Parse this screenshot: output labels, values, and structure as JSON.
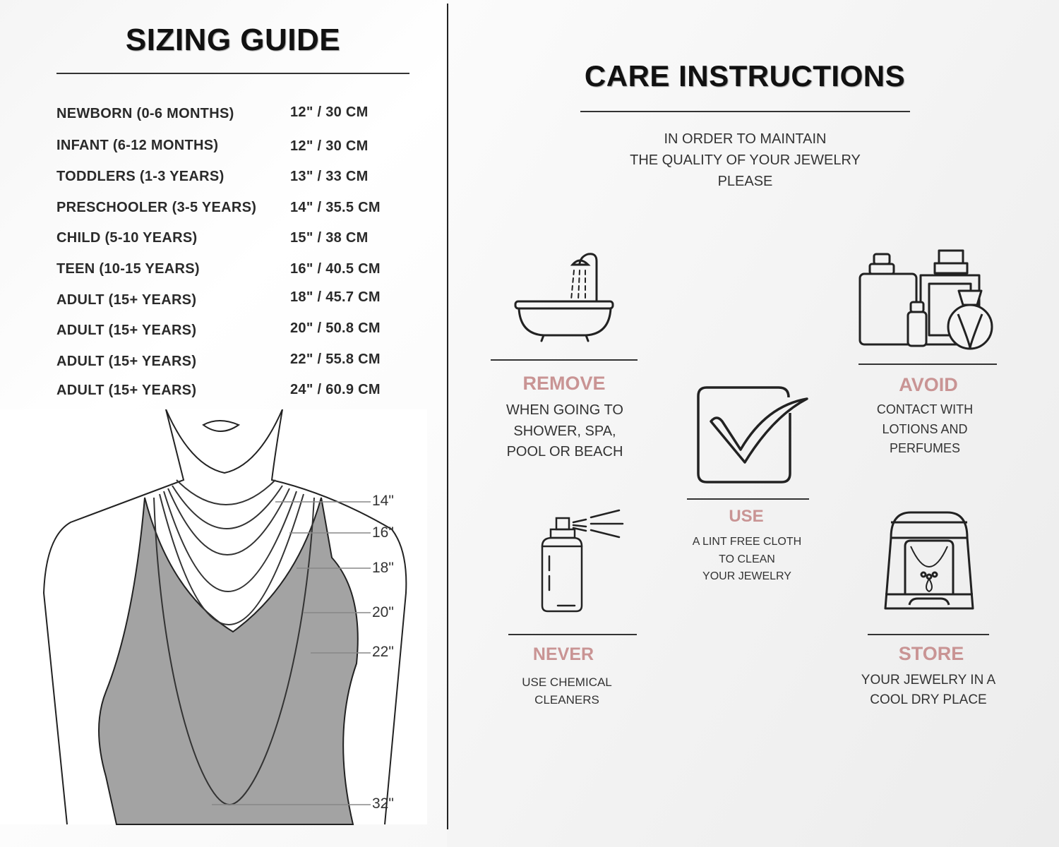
{
  "sizing": {
    "title": "SIZING GUIDE",
    "rows": [
      {
        "label": "NEWBORN (0-6 MONTHS)",
        "value": "12\" / 30 CM"
      },
      {
        "label": "INFANT (6-12 MONTHS)",
        "value": "12\" / 30 CM"
      },
      {
        "label": "TODDLERS (1-3 YEARS)",
        "value": "13\" / 33 CM"
      },
      {
        "label": "PRESCHOOLER (3-5 YEARS)",
        "value": "14\" / 35.5 CM"
      },
      {
        "label": "CHILD (5-10 YEARS)",
        "value": "15\" / 38 CM"
      },
      {
        "label": "TEEN (10-15 YEARS)",
        "value": "16\" / 40.5 CM"
      },
      {
        "label": "ADULT (15+ YEARS)",
        "value": "18\" / 45.7 CM"
      },
      {
        "label": "ADULT (15+ YEARS)",
        "value": "20\" / 50.8 CM"
      },
      {
        "label": "ADULT (15+ YEARS)",
        "value": "22\" / 55.8 CM"
      },
      {
        "label": "ADULT (15+ YEARS)",
        "value": "24\" / 60.9 CM"
      }
    ],
    "figure_labels": [
      "14\"",
      "16\"",
      "18\"",
      "20\"",
      "22\"",
      "32\""
    ]
  },
  "care": {
    "title": "CARE INSTRUCTIONS",
    "intro": [
      "IN ORDER TO MAINTAIN",
      "THE QUALITY OF YOUR JEWELRY",
      "PLEASE"
    ],
    "accent_color": "#c99494",
    "items": [
      {
        "icon": "bathtub-icon",
        "heading": "REMOVE",
        "lines": [
          "WHEN GOING TO",
          "SHOWER, SPA,",
          "POOL OR BEACH"
        ]
      },
      {
        "icon": "perfume-bottles-icon",
        "heading": "AVOID",
        "lines": [
          "CONTACT WITH",
          "LOTIONS AND",
          "PERFUMES"
        ]
      },
      {
        "icon": "checkbox-icon",
        "heading": "USE",
        "lines": [
          "A LINT FREE CLOTH",
          "TO CLEAN",
          "YOUR JEWELRY"
        ]
      },
      {
        "icon": "spray-bottle-icon",
        "heading": "NEVER",
        "lines": [
          "USE CHEMICAL",
          "CLEANERS"
        ]
      },
      {
        "icon": "jewelry-box-icon",
        "heading": "STORE",
        "lines": [
          "YOUR JEWELRY IN A",
          "COOL DRY PLACE"
        ]
      }
    ]
  }
}
